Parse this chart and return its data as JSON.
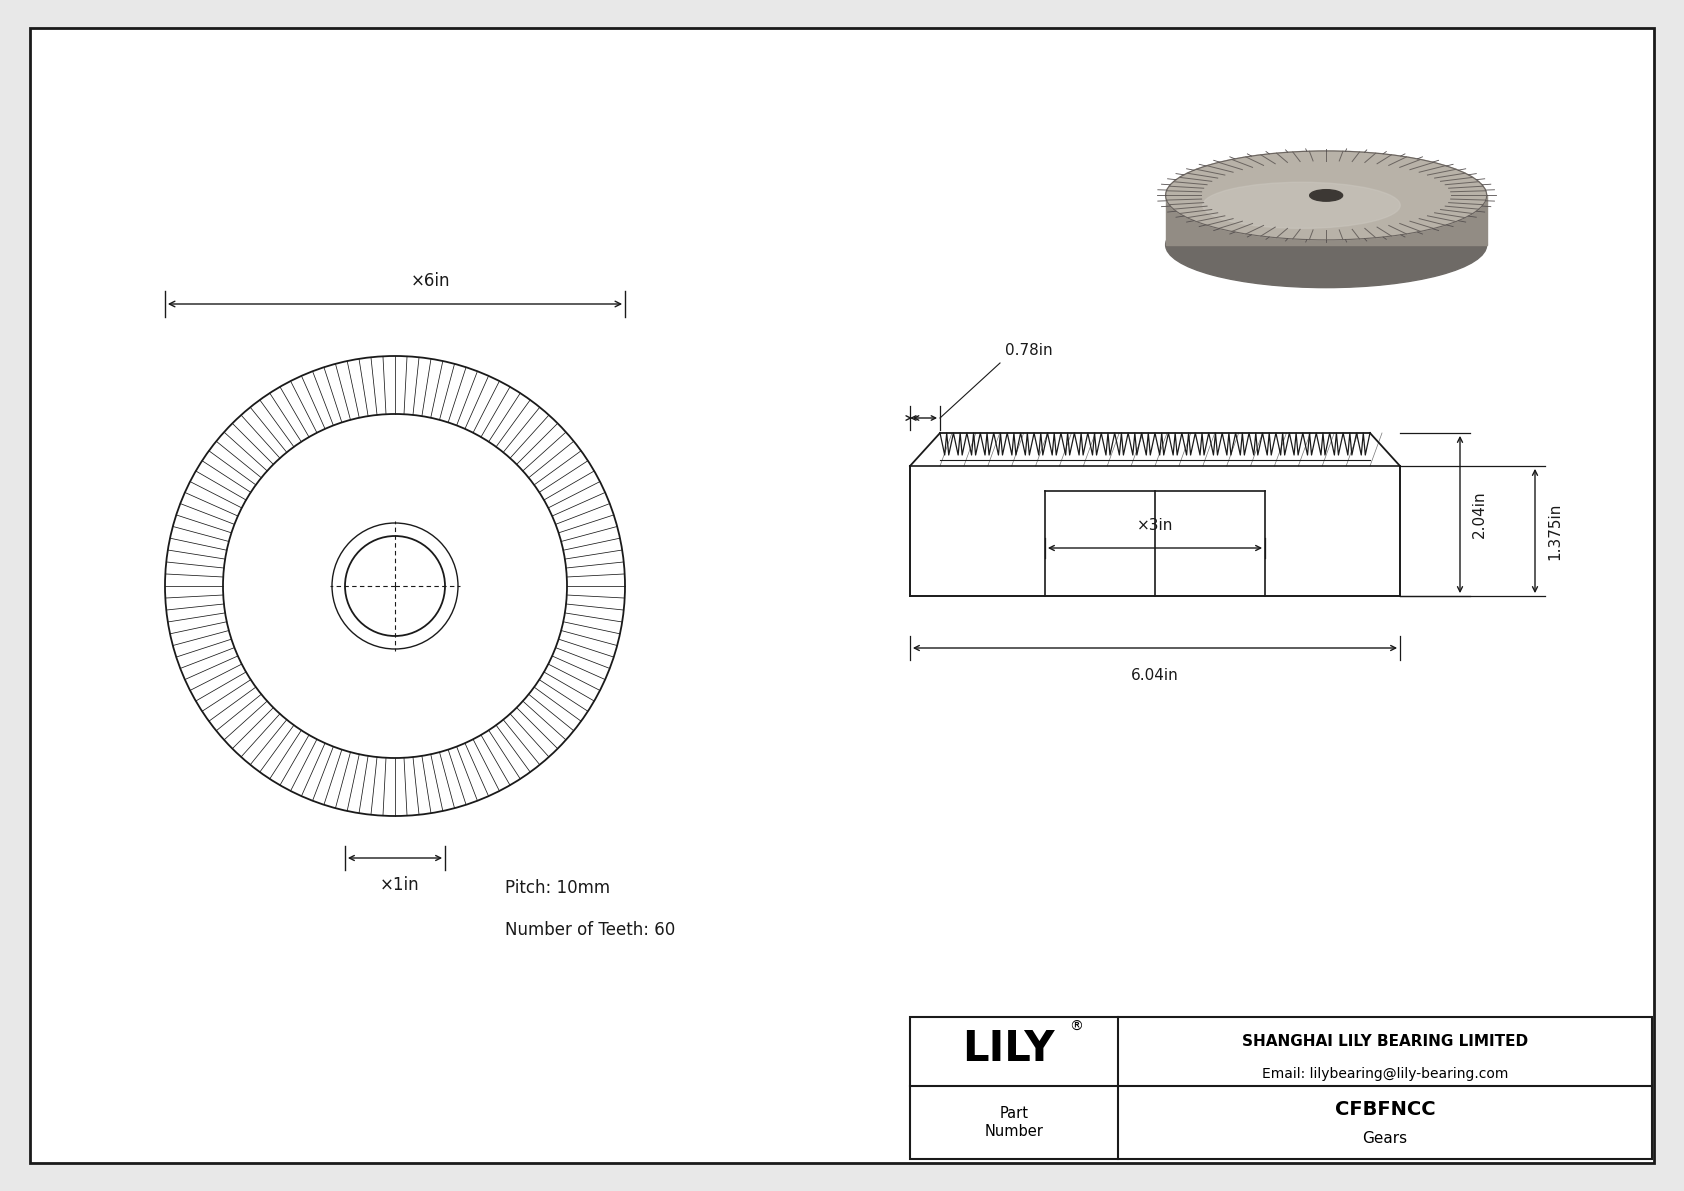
{
  "bg_color": "#e8e8e8",
  "drawing_bg": "#ffffff",
  "line_color": "#1a1a1a",
  "dim_color": "#1a1a1a",
  "company": "SHANGHAI LILY BEARING LIMITED",
  "email": "Email: lilybearing@lily-bearing.com",
  "part_number": "CFBFNCC",
  "part_type": "Gears",
  "pitch": "Pitch: 10mm",
  "num_teeth": "Number of Teeth: 60",
  "dim_6in": "×6in",
  "dim_1in": "×1in",
  "dim_3in": "×3in",
  "dim_078": "0.78in",
  "dim_204": "2.04in",
  "dim_1375": "1.375in",
  "dim_604": "6.04in",
  "n_teeth": 60,
  "n_lines": 120
}
